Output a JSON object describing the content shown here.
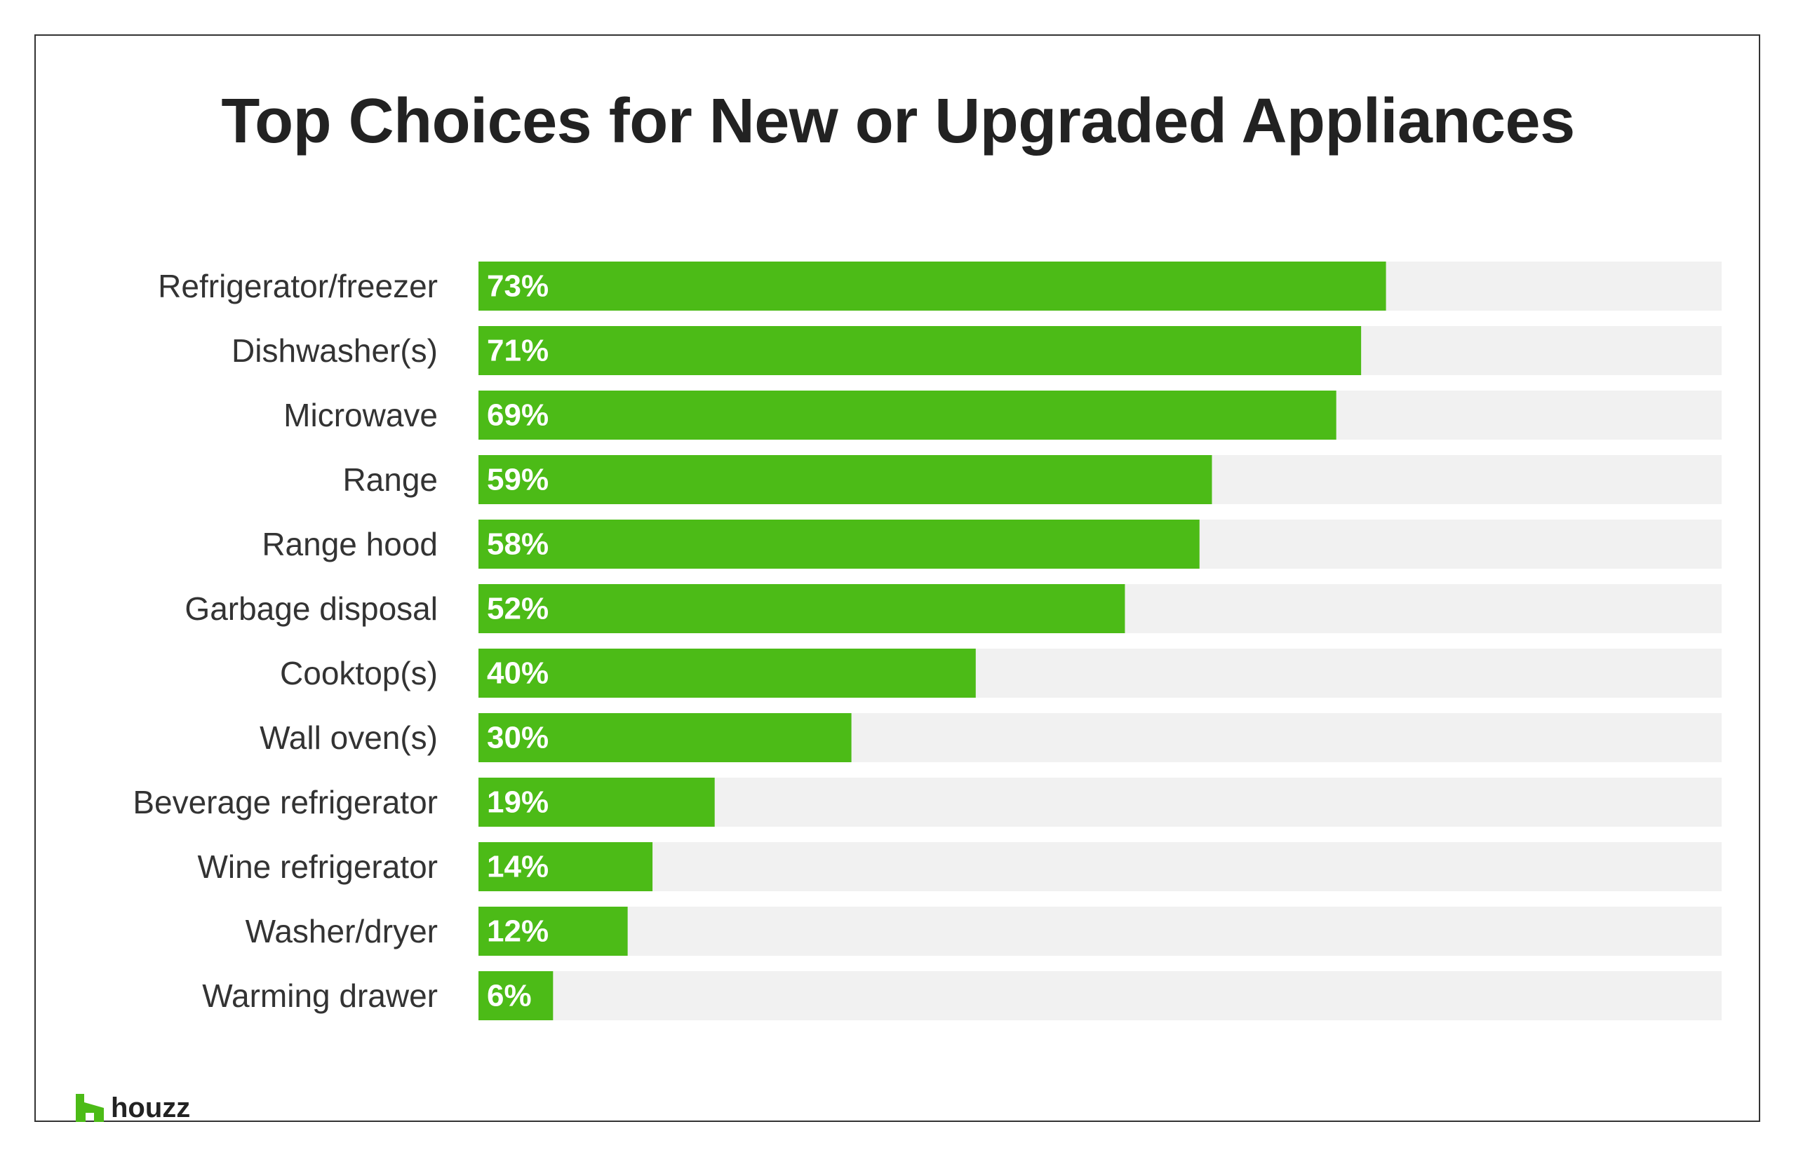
{
  "colors": {
    "bar": "#4cbb17",
    "track": "#f1f1f1",
    "logo": "#4cbb17"
  },
  "brand": {
    "name": "houzz",
    "icon": "houzz-logo-icon"
  },
  "chart_data": {
    "type": "bar",
    "orientation": "horizontal",
    "title": "Top Choices for New or Upgraded Appliances",
    "xlim": [
      0,
      100
    ],
    "grid": false,
    "categories": [
      "Refrigerator/freezer",
      "Dishwasher(s)",
      "Microwave",
      "Range",
      "Range hood",
      "Garbage disposal",
      "Cooktop(s)",
      "Wall oven(s)",
      "Beverage refrigerator",
      "Wine refrigerator",
      "Washer/dryer",
      "Warming drawer"
    ],
    "values": [
      73,
      71,
      69,
      59,
      58,
      52,
      40,
      30,
      19,
      14,
      12,
      6
    ],
    "data_labels": [
      "73%",
      "71%",
      "69%",
      "59%",
      "58%",
      "52%",
      "40%",
      "30%",
      "19%",
      "14%",
      "12%",
      "6%"
    ]
  }
}
